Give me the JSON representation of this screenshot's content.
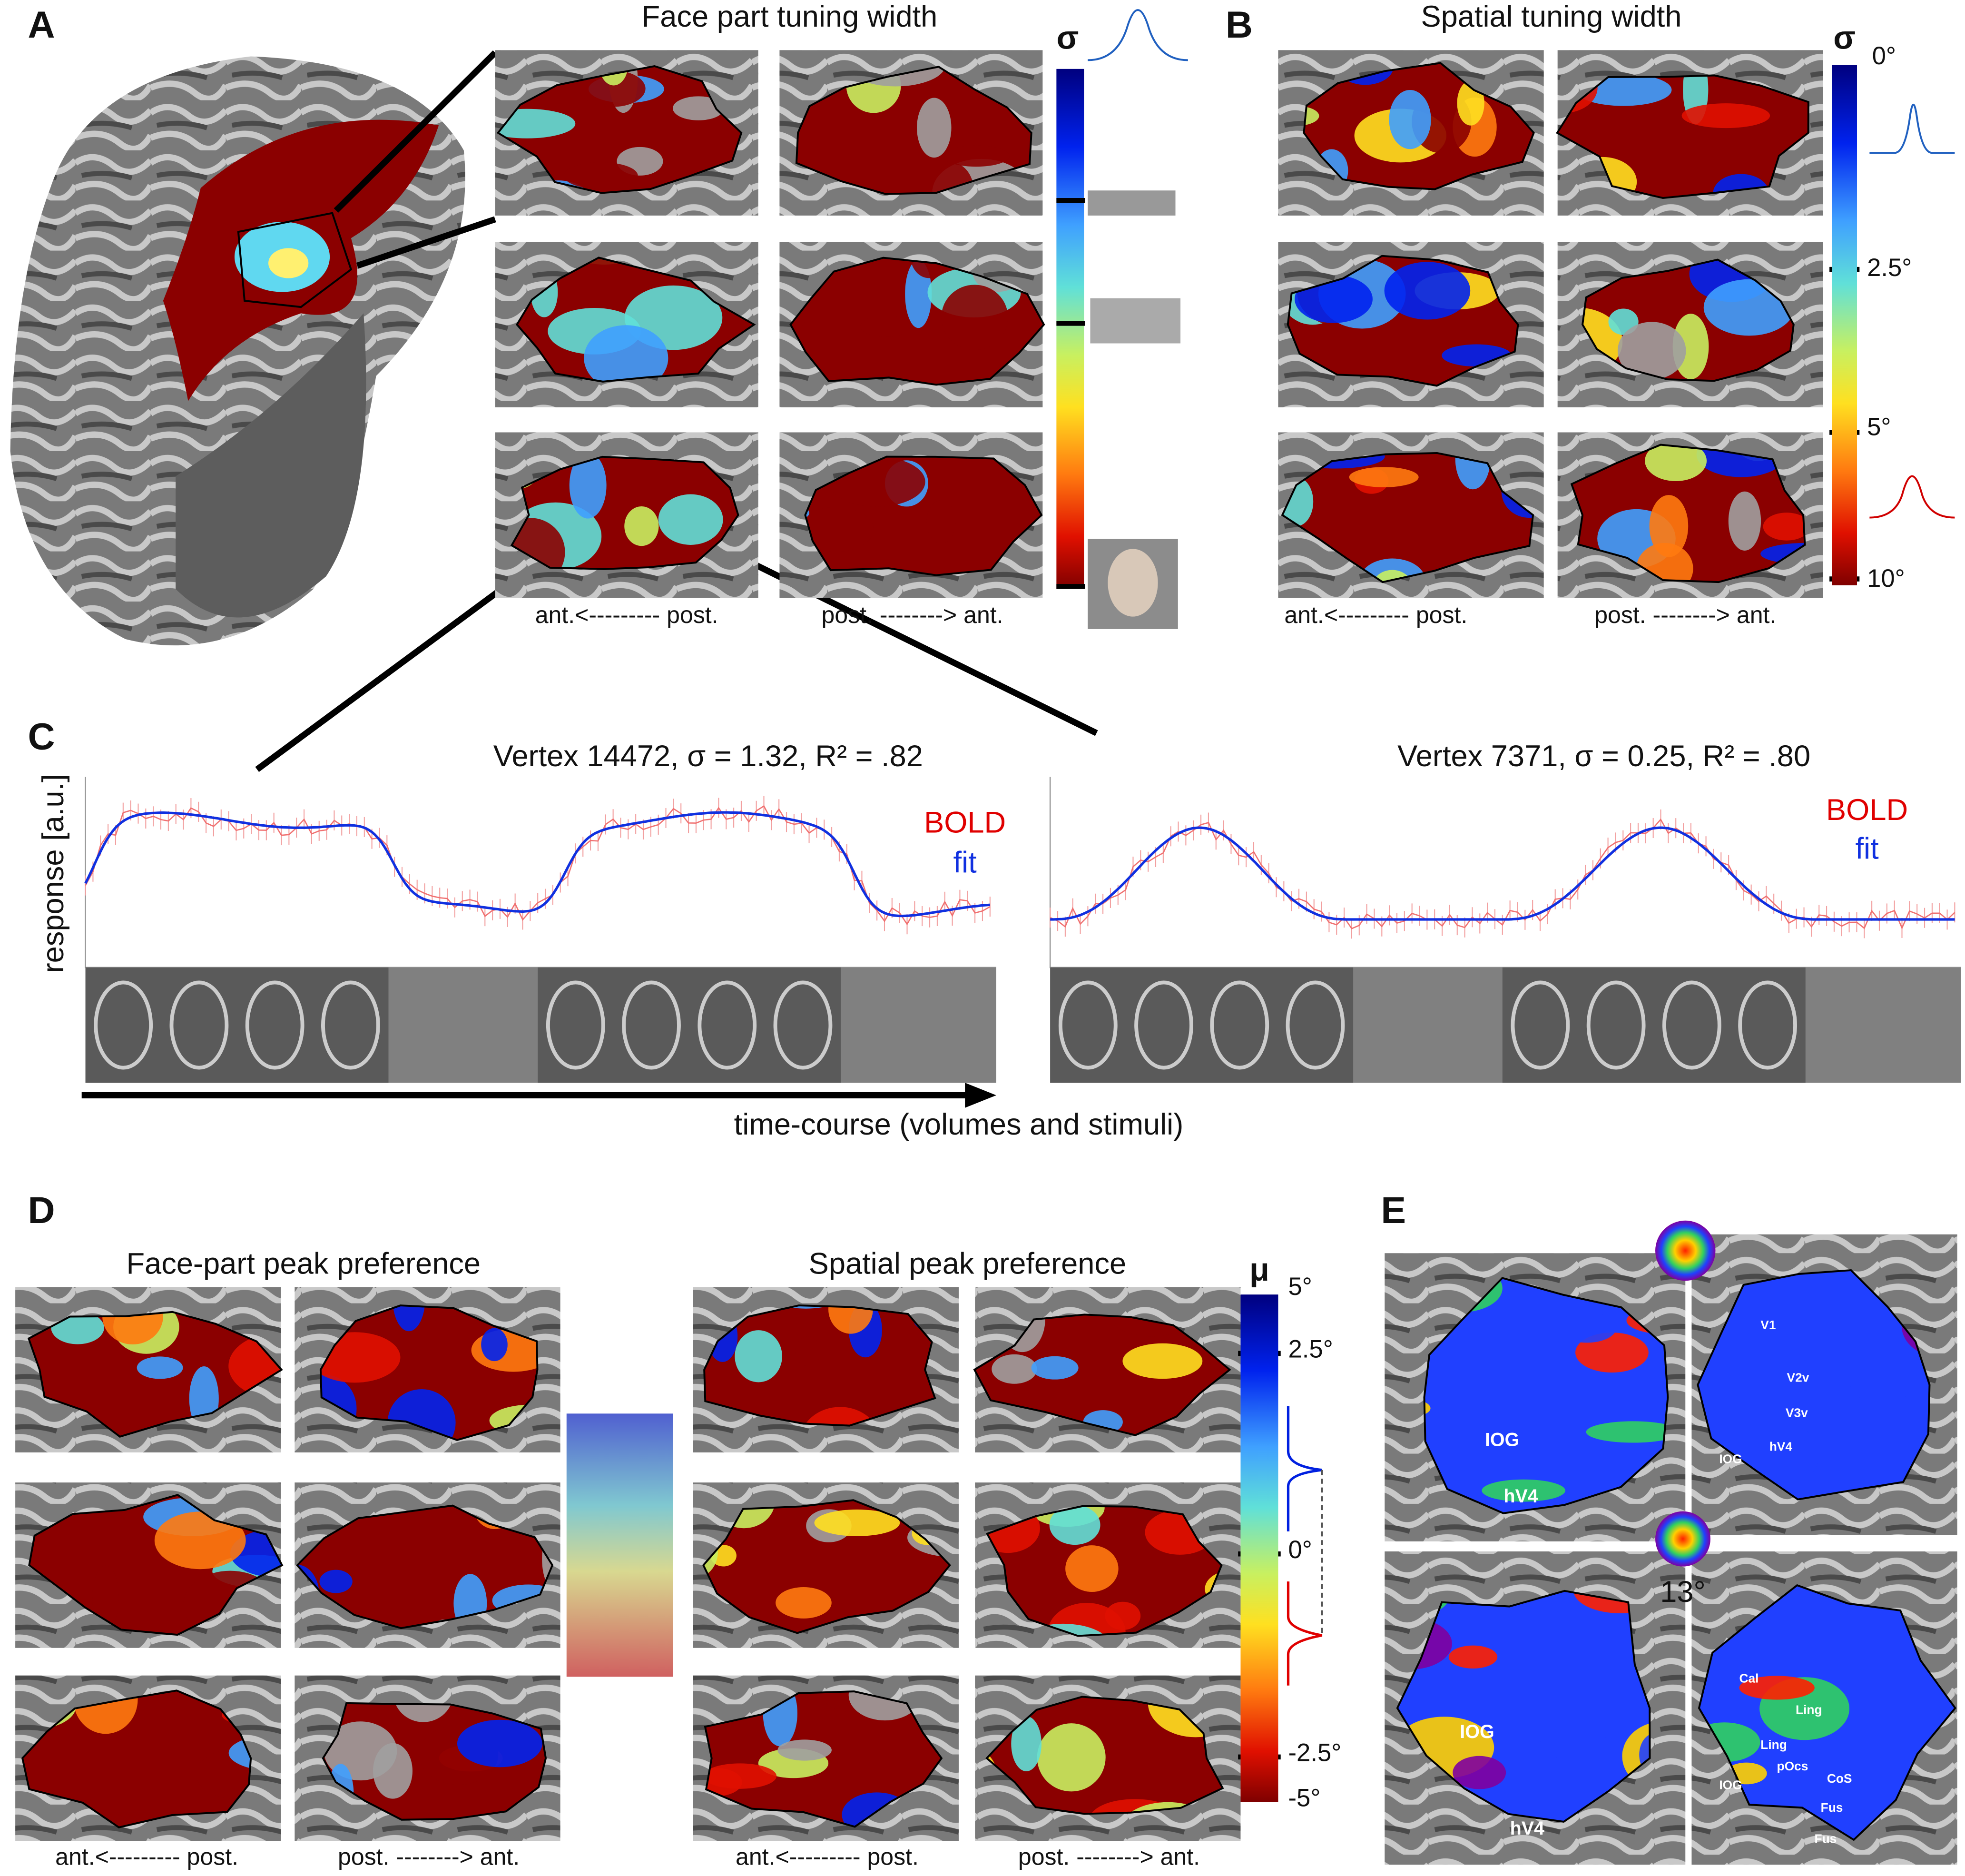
{
  "panel_a": {
    "label": "A",
    "title": "Face part tuning width",
    "colorbar_symbol": "σ",
    "axis_labels": [
      "ant.<--------- post.",
      "post. --------> ant."
    ]
  },
  "panel_b": {
    "label": "B",
    "title": "Spatial tuning width",
    "colorbar_symbol": "σ",
    "colorbar_ticks": [
      "0°",
      "2.5°",
      "5°",
      "10°"
    ],
    "axis_labels": [
      "ant.<--------- post.",
      "post. --------> ant."
    ]
  },
  "panel_c": {
    "label": "C",
    "plots": [
      {
        "title": "Vertex 14472, σ = 1.32, R² = .82",
        "legend": [
          "BOLD",
          "fit"
        ]
      },
      {
        "title": "Vertex 7371, σ = 0.25, R² = .80",
        "legend": [
          "BOLD",
          "fit"
        ]
      }
    ],
    "y_label": "response [a.u.]",
    "x_label": "time-course (volumes and stimuli)"
  },
  "panel_d": {
    "label": "D",
    "titles": [
      "Face-part peak preference",
      "Spatial peak preference"
    ],
    "colorbar_symbol": "μ",
    "colorbar_ticks": [
      "5°",
      "2.5°",
      "0°",
      "-2.5°",
      "-5°"
    ],
    "axis_labels": [
      "ant.<--------- post.",
      "post. --------> ant.",
      "ant.<--------- post.",
      "post. --------> ant."
    ]
  },
  "panel_e": {
    "label": "E",
    "top_left_labels": [
      "IOG",
      "hV4"
    ],
    "top_right_labels": [
      "V1",
      "V2v",
      "V3v",
      "hV4",
      "IOG"
    ],
    "eccentricity_label": "13°",
    "bottom_left_labels": [
      "IOG",
      "hV4"
    ],
    "bottom_right_labels": [
      "Cal",
      "Ling",
      "Ling",
      "pOcs",
      "IOG",
      "CoS",
      "Fus",
      "Fus"
    ]
  }
}
